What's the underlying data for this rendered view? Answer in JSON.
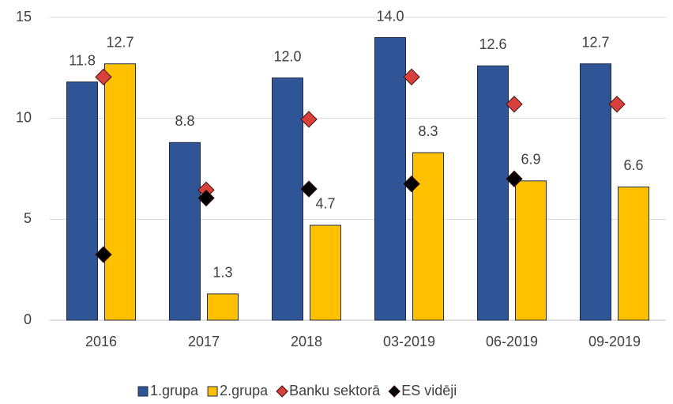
{
  "chart_data": {
    "type": "bar",
    "categories": [
      "2016",
      "2017",
      "2018",
      "03-2019",
      "06-2019",
      "09-2019"
    ],
    "series": [
      {
        "name": "1.grupa",
        "type": "bar",
        "color": "#2f5597",
        "values": [
          11.8,
          8.8,
          12.0,
          14.0,
          12.6,
          12.7
        ],
        "value_labels": [
          "11.8",
          "8.8",
          "12.0",
          "14.0",
          "12.6",
          "12.7"
        ]
      },
      {
        "name": "2.grupa",
        "type": "bar",
        "color": "#ffc000",
        "values": [
          12.7,
          1.3,
          4.7,
          8.3,
          6.9,
          6.6
        ],
        "value_labels": [
          "12.7",
          "1.3",
          "4.7",
          "8.3",
          "6.9",
          "6.6"
        ]
      },
      {
        "name": "Banku sektorā",
        "type": "scatter",
        "color": "#d9403b",
        "values": [
          12.05,
          6.45,
          9.95,
          12.05,
          10.7,
          10.7
        ]
      },
      {
        "name": "ES vidēji",
        "type": "scatter",
        "color": "#000000",
        "values": [
          3.25,
          6.05,
          6.5,
          6.75,
          7.0,
          null
        ]
      }
    ],
    "ylim": [
      0,
      15
    ],
    "yticks": [
      0,
      5,
      10,
      15
    ],
    "grid": true,
    "legend": "bottom"
  }
}
